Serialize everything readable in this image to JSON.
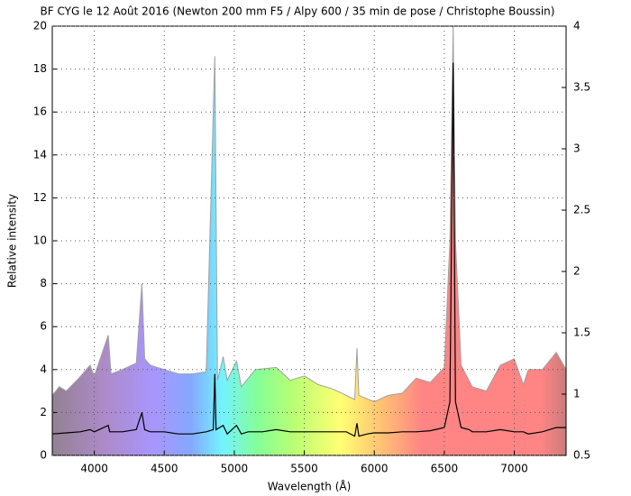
{
  "chart_data": {
    "type": "line",
    "title": "BF CYG le 12 Août 2016 (Newton 200 mm F5 / Alpy 600 / 35 min de pose / Christophe Boussin)",
    "x_label": "Wavelength (Å)",
    "y_label": "Relative intensity",
    "xlim": [
      3700,
      7370
    ],
    "xticks": [
      4000,
      4500,
      5000,
      5500,
      6000,
      6500,
      7000
    ],
    "ylim": [
      0,
      20
    ],
    "yticks": [
      0,
      2,
      4,
      6,
      8,
      10,
      12,
      14,
      16,
      18,
      20
    ],
    "y2lim": [
      0.5,
      4
    ],
    "y2ticks": [
      0.5,
      1,
      1.5,
      2,
      2.5,
      3,
      3.5,
      4
    ],
    "grid": true,
    "series": [
      {
        "color": "#000000",
        "x": [
          3700,
          3800,
          3900,
          3970,
          4000,
          4100,
          4110,
          4200,
          4300,
          4340,
          4360,
          4400,
          4500,
          4600,
          4700,
          4800,
          4850,
          4861,
          4870,
          4921,
          4950,
          5016,
          5050,
          5100,
          5200,
          5300,
          5400,
          5500,
          5600,
          5700,
          5800,
          5860,
          5876,
          5890,
          5950,
          6000,
          6100,
          6200,
          6300,
          6400,
          6500,
          6540,
          6563,
          6580,
          6620,
          6678,
          6700,
          6800,
          6900,
          7000,
          7065,
          7100,
          7200,
          7300,
          7370
        ],
        "values": [
          1.0,
          1.05,
          1.1,
          1.2,
          1.1,
          1.4,
          1.1,
          1.1,
          1.2,
          2.0,
          1.2,
          1.1,
          1.1,
          1.0,
          1.0,
          1.1,
          1.2,
          3.8,
          1.2,
          1.4,
          1.0,
          1.4,
          1.0,
          1.1,
          1.1,
          1.2,
          1.1,
          1.1,
          1.1,
          1.1,
          1.1,
          0.9,
          1.5,
          0.9,
          1.0,
          1.05,
          1.05,
          1.1,
          1.1,
          1.15,
          1.3,
          2.5,
          18.3,
          2.5,
          1.3,
          1.2,
          1.1,
          1.1,
          1.2,
          1.1,
          1.1,
          1.0,
          1.1,
          1.3,
          1.3
        ]
      },
      {
        "color": "#a0a0a0",
        "fill": "spectrum",
        "x": [
          3700,
          3750,
          3800,
          3890,
          3970,
          4000,
          4100,
          4120,
          4200,
          4300,
          4340,
          4360,
          4400,
          4500,
          4600,
          4700,
          4800,
          4861,
          4880,
          4921,
          4950,
          5016,
          5050,
          5150,
          5300,
          5400,
          5500,
          5600,
          5700,
          5800,
          5860,
          5876,
          5890,
          6000,
          6100,
          6200,
          6300,
          6400,
          6500,
          6540,
          6563,
          6580,
          6620,
          6700,
          6800,
          6900,
          7000,
          7065,
          7100,
          7200,
          7300,
          7370
        ],
        "values": [
          2.8,
          3.2,
          3.0,
          3.6,
          4.2,
          3.7,
          5.6,
          3.8,
          4.0,
          4.3,
          8.0,
          4.5,
          4.2,
          4.0,
          3.8,
          3.8,
          3.9,
          18.6,
          3.5,
          4.6,
          3.5,
          4.4,
          3.2,
          4.0,
          4.1,
          3.5,
          3.7,
          3.3,
          3.1,
          2.8,
          2.6,
          5.0,
          2.8,
          2.5,
          2.8,
          2.9,
          3.6,
          3.4,
          4.1,
          10,
          20,
          10,
          4.2,
          3.2,
          3.0,
          4.2,
          4.5,
          3.3,
          4.0,
          4.0,
          4.8,
          4.0
        ]
      }
    ]
  }
}
